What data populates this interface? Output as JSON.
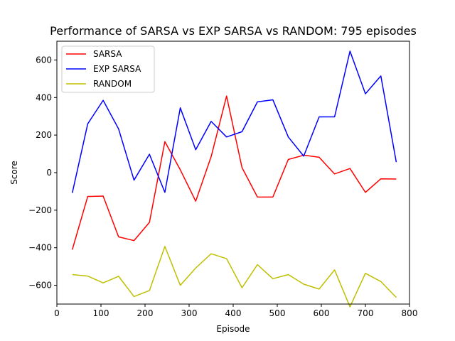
{
  "chart_data": {
    "type": "line",
    "title": "Performance of SARSA vs EXP SARSA vs RANDOM: 795 episodes",
    "xlabel": "Episode",
    "ylabel": "Score",
    "xlim": [
      0,
      800
    ],
    "ylim": [
      -700,
      700
    ],
    "xticks": [
      0,
      100,
      200,
      300,
      400,
      500,
      600,
      700,
      800
    ],
    "yticks": [
      -600,
      -400,
      -200,
      0,
      200,
      400,
      600
    ],
    "xtick_labels": [
      "0",
      "100",
      "200",
      "300",
      "400",
      "500",
      "600",
      "700",
      "800"
    ],
    "ytick_labels": [
      "−600",
      "−400",
      "−200",
      "0",
      "200",
      "400",
      "600"
    ],
    "grid": false,
    "legend_position": "top-left",
    "x": [
      35,
      70,
      105,
      140,
      175,
      210,
      245,
      280,
      315,
      350,
      385,
      420,
      455,
      490,
      525,
      560,
      595,
      630,
      665,
      700,
      735,
      770
    ],
    "series": [
      {
        "name": "SARSA",
        "color": "#ff0000",
        "values": [
          -410,
          -127,
          -125,
          -342,
          -362,
          -265,
          165,
          15,
          -152,
          85,
          408,
          27,
          -130,
          -130,
          70,
          93,
          82,
          -7,
          22,
          -105,
          -33,
          -34
        ]
      },
      {
        "name": "EXP SARSA",
        "color": "#0000ff",
        "values": [
          -108,
          260,
          385,
          233,
          -40,
          98,
          -105,
          345,
          122,
          273,
          190,
          218,
          377,
          388,
          190,
          88,
          297,
          297,
          647,
          420,
          515,
          56
        ]
      },
      {
        "name": "RANDOM",
        "color": "#bfbf00",
        "values": [
          -543,
          -551,
          -587,
          -552,
          -660,
          -628,
          -393,
          -600,
          -508,
          -432,
          -458,
          -613,
          -490,
          -565,
          -543,
          -594,
          -620,
          -518,
          -715,
          -536,
          -580,
          -665
        ]
      }
    ]
  }
}
